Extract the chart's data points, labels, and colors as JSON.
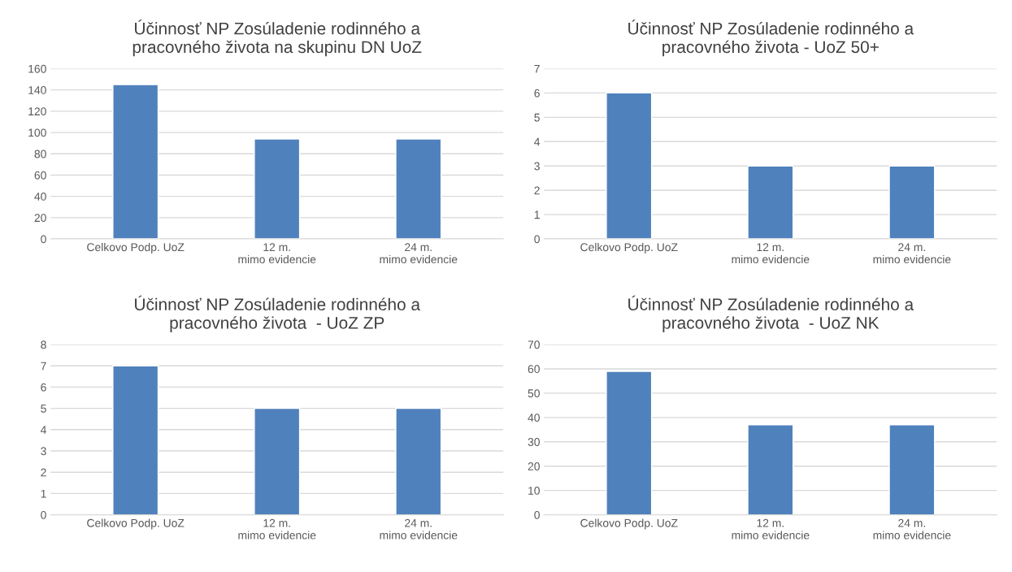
{
  "chart_data": [
    {
      "type": "bar",
      "title": "Účinnosť NP Zosúladenie rodinného a\npracovného života na skupinu DN UoZ",
      "categories": [
        "Celkovo Podp. UoZ",
        "12 m.\nmimo evidencie",
        "24 m.\nmimo evidencie"
      ],
      "values": [
        145,
        94,
        94
      ],
      "color": "#4f81bd",
      "ylim": [
        0,
        160
      ],
      "yticks": [
        0,
        20,
        40,
        60,
        80,
        100,
        120,
        140,
        160
      ],
      "grid": "y"
    },
    {
      "type": "bar",
      "title": "Účinnosť NP Zosúladenie rodinného a\npracovného života - UoZ 50+",
      "categories": [
        "Celkovo Podp. UoZ",
        "12 m.\nmimo evidencie",
        "24 m.\nmimo evidencie"
      ],
      "values": [
        6,
        3,
        3
      ],
      "color": "#4f81bd",
      "ylim": [
        0,
        7
      ],
      "yticks": [
        0,
        1,
        2,
        3,
        4,
        5,
        6,
        7
      ],
      "grid": "y"
    },
    {
      "type": "bar",
      "title": "Účinnosť NP Zosúladenie rodinného a\npracovného života  - UoZ ZP",
      "categories": [
        "Celkovo Podp. UoZ",
        "12 m.\nmimo evidencie",
        "24 m.\nmimo evidencie"
      ],
      "values": [
        7,
        5,
        5
      ],
      "color": "#4f81bd",
      "ylim": [
        0,
        8
      ],
      "yticks": [
        0,
        1,
        2,
        3,
        4,
        5,
        6,
        7,
        8
      ],
      "grid": "y"
    },
    {
      "type": "bar",
      "title": "Účinnosť NP Zosúladenie rodinného a\npracovného života  - UoZ NK",
      "categories": [
        "Celkovo Podp. UoZ",
        "12 m.\nmimo evidencie",
        "24 m.\nmimo evidencie"
      ],
      "values": [
        59,
        37,
        37
      ],
      "color": "#4f81bd",
      "ylim": [
        0,
        70
      ],
      "yticks": [
        0,
        10,
        20,
        30,
        40,
        50,
        60,
        70
      ],
      "grid": "y"
    }
  ]
}
